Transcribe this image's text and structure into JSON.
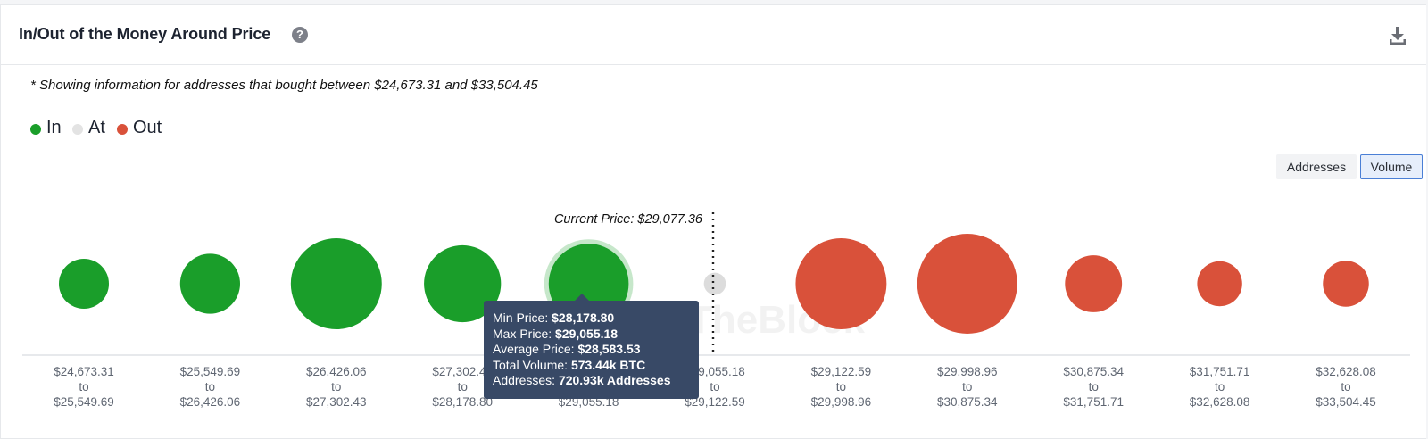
{
  "header": {
    "title": "In/Out of the Money Around Price",
    "help_icon": "?",
    "download_icon": "download-icon"
  },
  "note": "* Showing information for addresses that bought between $24,673.31 and $33,504.45",
  "legend": [
    {
      "label": "In",
      "color": "#1a9e2a"
    },
    {
      "label": "At",
      "color": "#e3e3e3"
    },
    {
      "label": "Out",
      "color": "#d9513a"
    }
  ],
  "toggle": {
    "addresses": "Addresses",
    "volume": "Volume",
    "selected": "Volume"
  },
  "colors": {
    "in": "#1a9e2a",
    "at": "#dcdcdc",
    "out": "#d9513a",
    "tooltip_bg": "#384966",
    "toggle_active_border": "#4a7fd6"
  },
  "watermark": "TheBlock",
  "chart_data": {
    "type": "scatter",
    "encoding": "bubble size = volume",
    "current_price_label": "Current Price: $29,077.36",
    "current_price": 29077.36,
    "buckets": [
      {
        "from": "$24,673.31",
        "to": "$25,549.69",
        "status": "in",
        "relative_size": 0.5
      },
      {
        "from": "$25,549.69",
        "to": "$26,426.06",
        "status": "in",
        "relative_size": 0.6
      },
      {
        "from": "$26,426.06",
        "to": "$27,302.43",
        "status": "in",
        "relative_size": 0.91
      },
      {
        "from": "$27,302.43",
        "to": "$28,178.80",
        "status": "in",
        "relative_size": 0.77
      },
      {
        "from": "$28,178.80",
        "to": "$29,055.18",
        "status": "in",
        "relative_size": 0.8,
        "highlighted": true
      },
      {
        "from": "$29,055.18",
        "to": "$29,122.59",
        "status": "at",
        "relative_size": 0.22
      },
      {
        "from": "$29,122.59",
        "to": "$29,998.96",
        "status": "out",
        "relative_size": 0.91
      },
      {
        "from": "$29,998.96",
        "to": "$30,875.34",
        "status": "out",
        "relative_size": 1.0
      },
      {
        "from": "$30,875.34",
        "to": "$31,751.71",
        "status": "out",
        "relative_size": 0.57
      },
      {
        "from": "$31,751.71",
        "to": "$32,628.08",
        "status": "out",
        "relative_size": 0.45
      },
      {
        "from": "$32,628.08",
        "to": "$33,504.45",
        "status": "out",
        "relative_size": 0.46
      }
    ],
    "tooltip": {
      "min_price_label": "Min Price: ",
      "min_price": "$28,178.80",
      "max_price_label": "Max Price: ",
      "max_price": "$29,055.18",
      "avg_price_label": "Average Price: ",
      "avg_price": "$28,583.53",
      "volume_label": "Total Volume: ",
      "volume": "573.44k BTC",
      "addresses_label": "Addresses: ",
      "addresses": "720.93k Addresses"
    }
  }
}
